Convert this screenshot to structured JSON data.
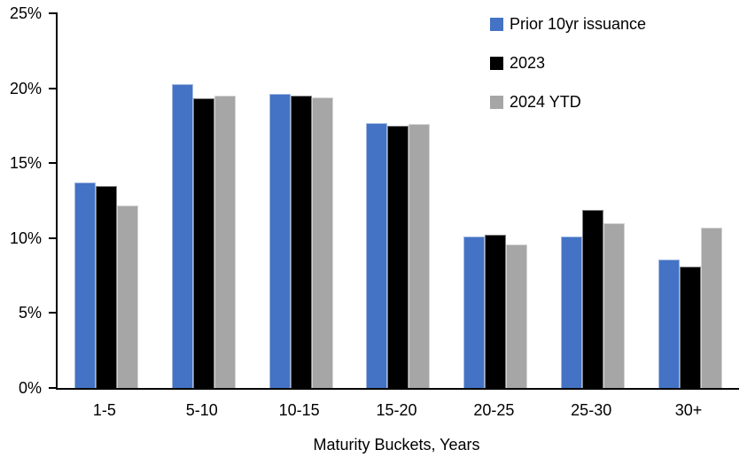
{
  "chart_data": {
    "type": "bar",
    "categories": [
      "1-5",
      "5-10",
      "10-15",
      "15-20",
      "20-25",
      "25-30",
      "30+"
    ],
    "series": [
      {
        "name": "Prior 10yr issuance",
        "color": "#4472C4",
        "values": [
          13.7,
          20.3,
          19.6,
          17.7,
          10.1,
          10.1,
          8.6
        ]
      },
      {
        "name": "2023",
        "color": "#000000",
        "values": [
          13.5,
          19.3,
          19.5,
          17.5,
          10.2,
          11.9,
          8.1
        ]
      },
      {
        "name": "2024 YTD",
        "color": "#A6A6A6",
        "values": [
          12.2,
          19.5,
          19.4,
          17.6,
          9.6,
          11.0,
          10.7
        ]
      }
    ],
    "title": "",
    "xlabel": "Maturity Buckets, Years",
    "ylabel": "",
    "ylim": [
      0,
      25
    ],
    "ytick_step": 5,
    "yticklabels": [
      "0%",
      "5%",
      "10%",
      "15%",
      "20%",
      "25%"
    ],
    "grid": false,
    "legend_position": "top-right-inside",
    "axis_color": "#000000",
    "background_color": "#FFFFFF"
  }
}
